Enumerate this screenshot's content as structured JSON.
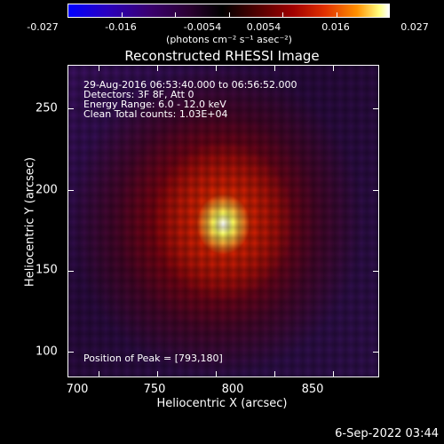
{
  "colorbar": {
    "labels": [
      "-0.027",
      "-0.016",
      "-0.0054",
      "0.0054",
      "0.016",
      "0.027"
    ],
    "units": "(photons cm⁻² s⁻¹ asec⁻²)"
  },
  "plot": {
    "title": "Reconstructed RHESSI Image",
    "info_lines": [
      "29-Aug-2016 06:53:40.000 to 06:56:52.000",
      "Detectors: 3F 8F, Att 0",
      "Energy Range: 6.0 - 12.0 keV",
      "Clean    Total counts: 1.03E+04"
    ],
    "peak_text": "Position of Peak = [793,180]",
    "x_ticks": [
      "700",
      "750",
      "800",
      "850"
    ],
    "y_ticks": [
      "250",
      "200",
      "150",
      "100"
    ],
    "x_axis_title": "Heliocentric X (arcsec)",
    "y_axis_title": "Heliocentric Y (arcsec)"
  },
  "footer": {
    "timestamp": "6-Sep-2022 03:44"
  }
}
